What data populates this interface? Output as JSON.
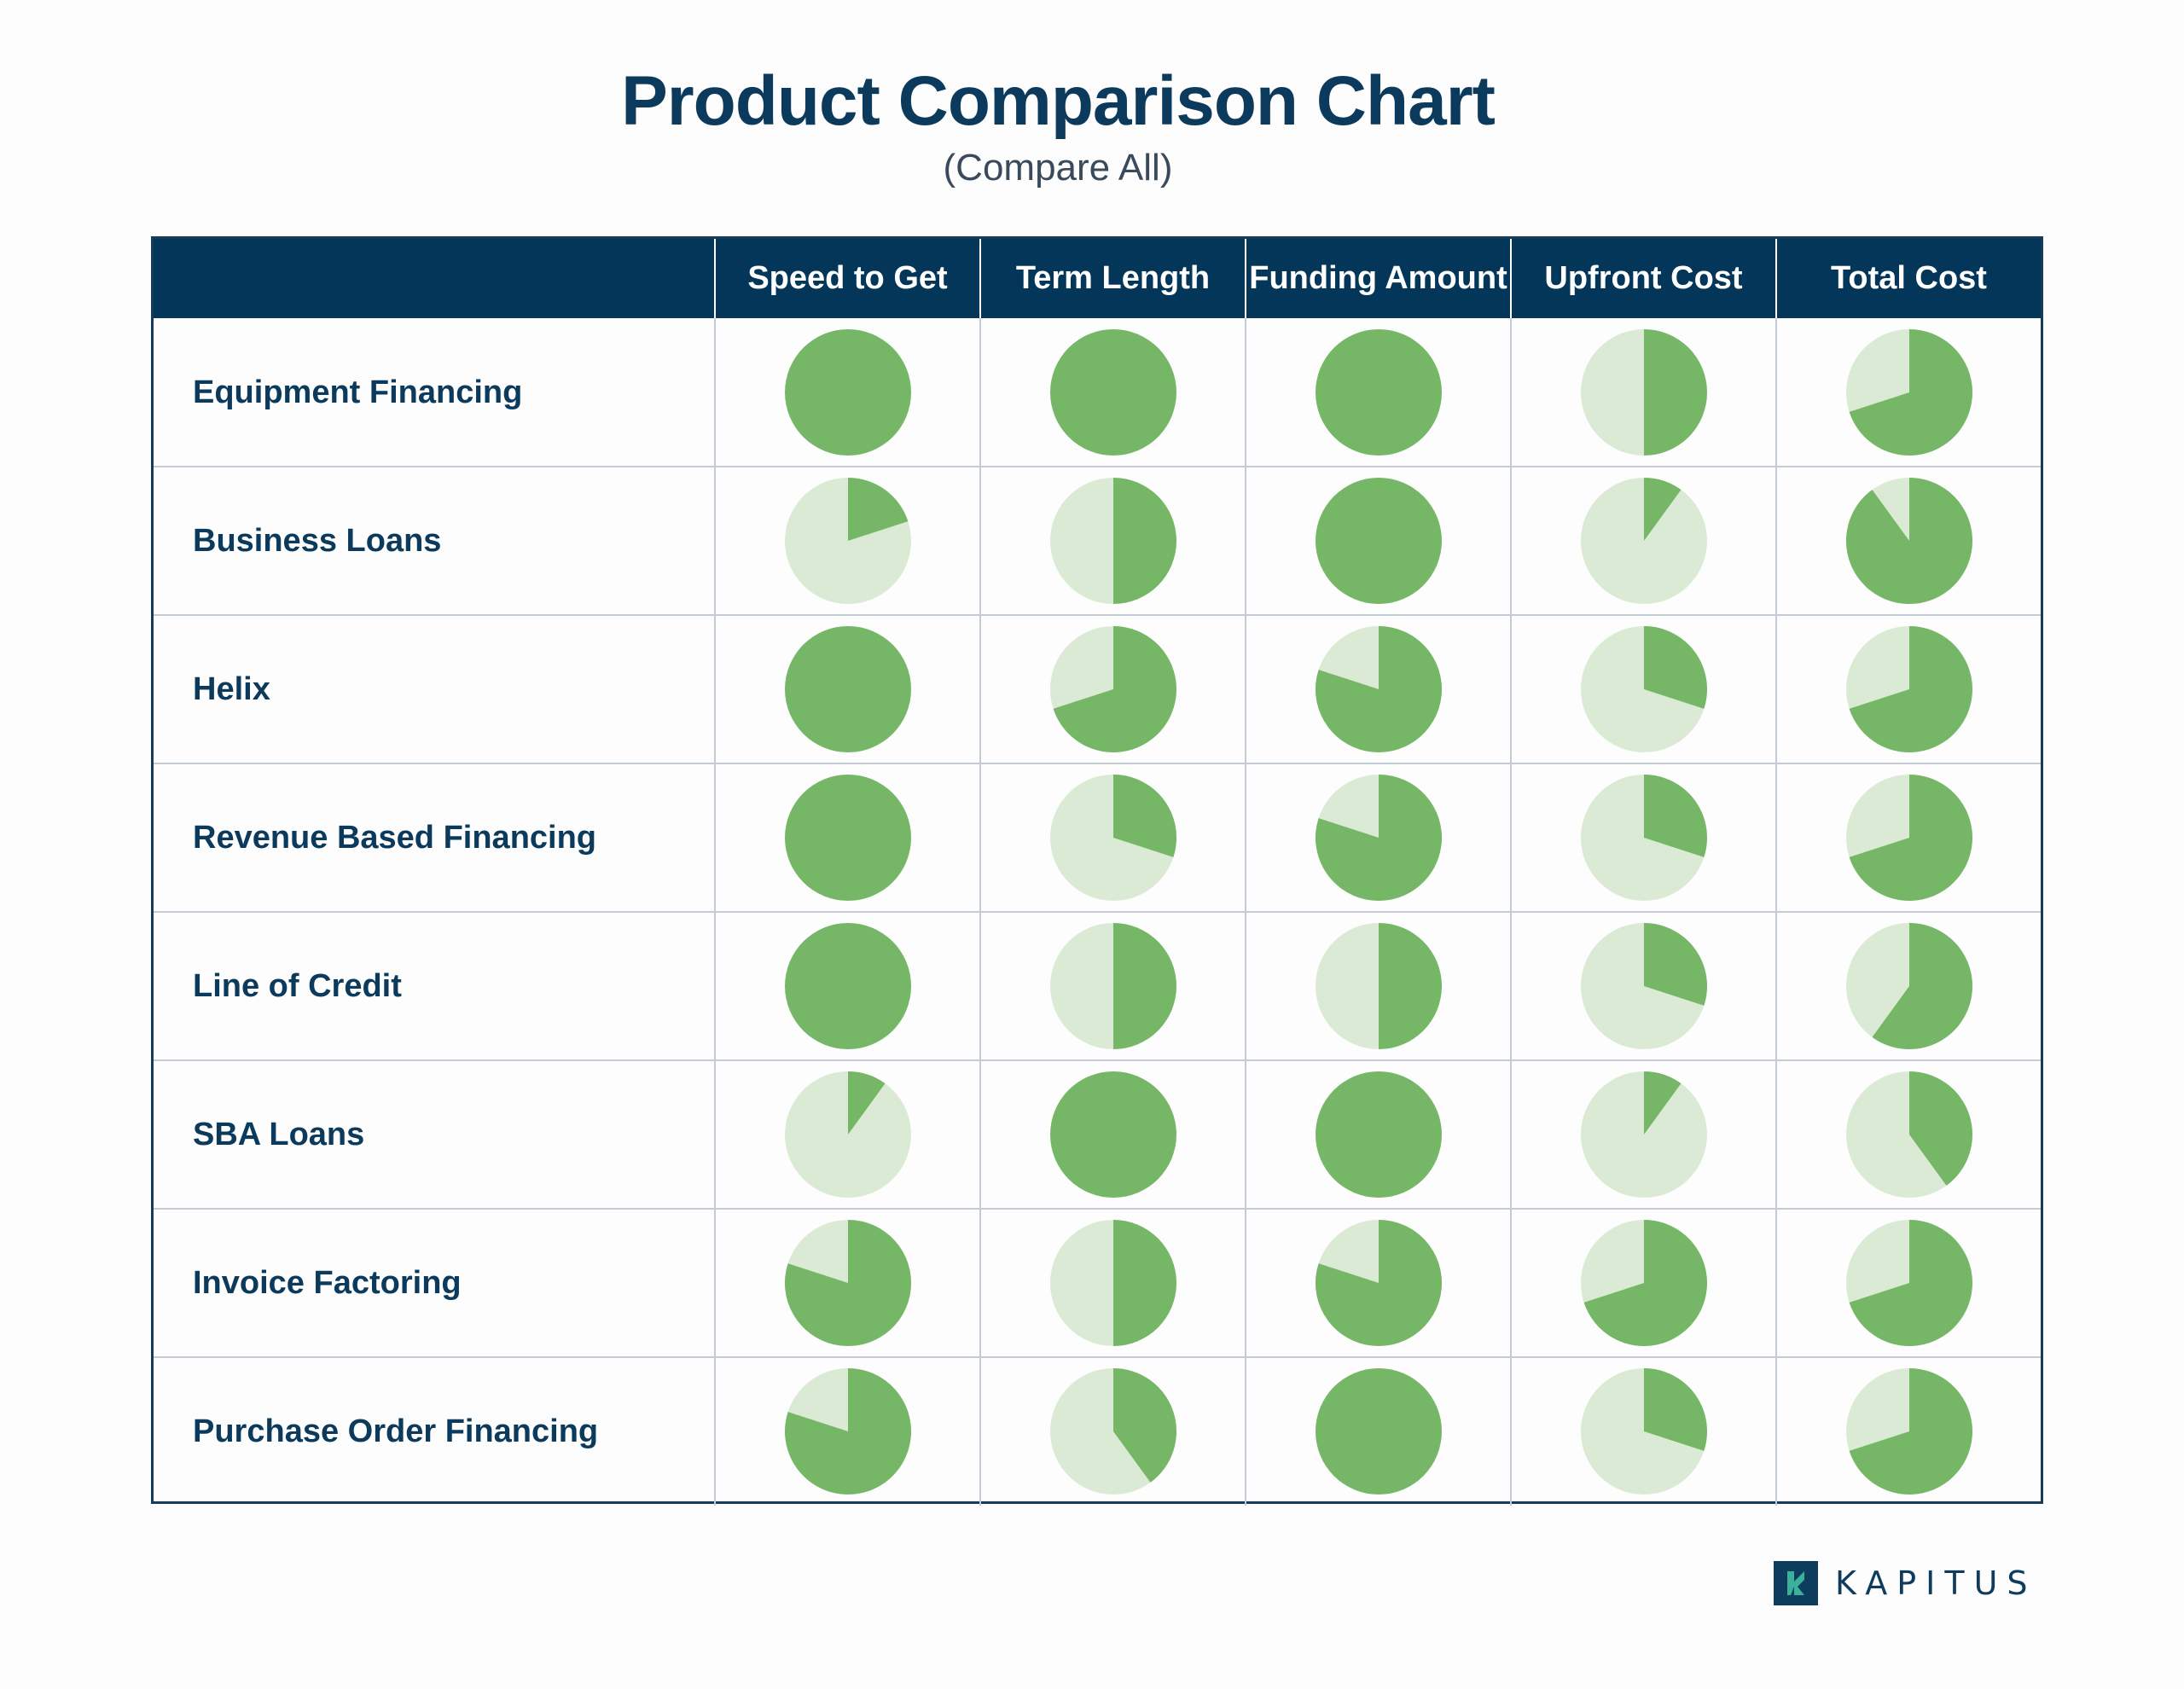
{
  "title": "Product Comparison Chart",
  "subtitle": "(Compare All)",
  "colors": {
    "header_bg": "#033659",
    "filled": "#76b767",
    "empty": "#dbead4",
    "text": "#0c3a5c",
    "grid": "#c3cbd4"
  },
  "brand": {
    "name": "KAPITUS",
    "mark": "k-logo-icon"
  },
  "chart_data": {
    "type": "table",
    "title": "Product Comparison Chart",
    "subtitle": "(Compare All)",
    "columns": [
      "Speed to Get",
      "Term Length",
      "Funding Amount",
      "Upfront Cost",
      "Total Cost"
    ],
    "rows": [
      {
        "name": "Equipment Financing",
        "values": [
          1,
          1,
          1,
          0.5,
          0.7
        ]
      },
      {
        "name": "Business Loans",
        "values": [
          0.2,
          0.5,
          1,
          0.1,
          0.9
        ]
      },
      {
        "name": "Helix",
        "values": [
          1,
          0.7,
          0.8,
          0.3,
          0.7
        ]
      },
      {
        "name": "Revenue Based Financing",
        "values": [
          1,
          0.3,
          0.8,
          0.3,
          0.7
        ]
      },
      {
        "name": "Line of Credit",
        "values": [
          1,
          0.5,
          0.5,
          0.3,
          0.6
        ]
      },
      {
        "name": "SBA Loans",
        "values": [
          0.1,
          1,
          1,
          0.1,
          0.4
        ]
      },
      {
        "name": "Invoice Factoring",
        "values": [
          0.8,
          0.5,
          0.8,
          0.7,
          0.7
        ]
      },
      {
        "name": "Purchase Order Financing",
        "values": [
          0.8,
          0.4,
          1,
          0.3,
          0.7
        ]
      }
    ]
  }
}
